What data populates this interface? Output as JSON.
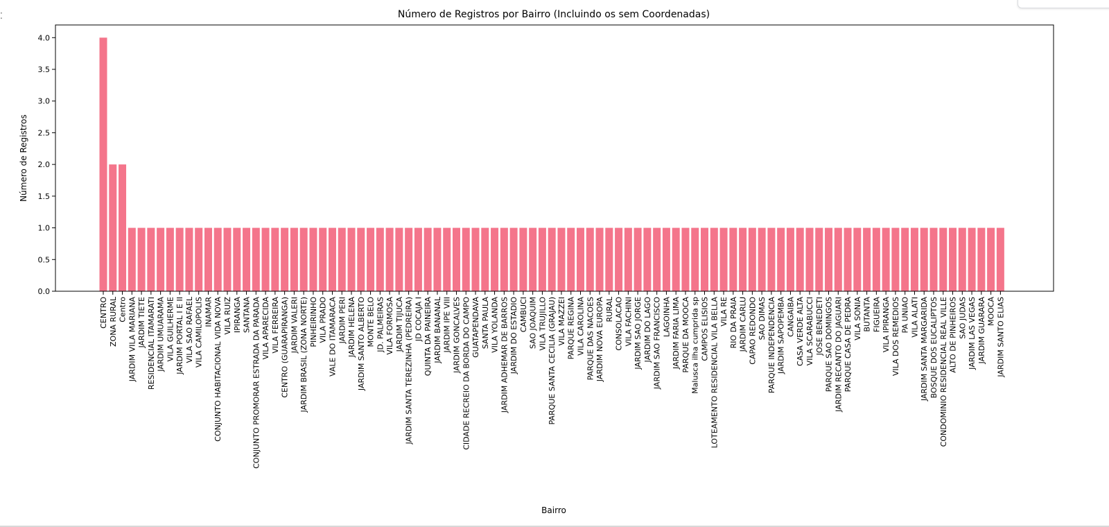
{
  "chart_data": {
    "type": "bar",
    "title": "Número de Registros por Bairro (Incluindo os sem Coordenadas)",
    "xlabel": "Bairro",
    "ylabel": "Número de Registros",
    "ylim": [
      0,
      4.2
    ],
    "yticks": [
      "0.0",
      "0.5",
      "1.0",
      "1.5",
      "2.0",
      "2.5",
      "3.0",
      "3.5",
      "4.0"
    ],
    "grid": false,
    "bar_color": "#f4758b",
    "categories": [
      "CENTRO",
      "ZONA RURAL",
      "Centro",
      "JARDIM VILA MARIANA",
      "JARDIM TIETE",
      "RESIDENCIAL ITAMARATI",
      "JARDIM UMUARAMA",
      "VILA GUILHERME",
      "JARDIM PORTAL I E II",
      "VILA SAO RAFAEL",
      "VILA CAMILOPOLIS",
      "INAMAR",
      "CONJUNTO HABITACIONAL VIDA NOVA",
      "VILA RUIZ",
      "IPIRANGA",
      "SANTANA",
      "CONJUNTO PROMORAR ESTRADA DA PARADA",
      "VILA APARECIDA",
      "VILA FERREIRA",
      "CENTRO (GUARAPIRANGA)",
      "JARDIM VALERI",
      "JARDIM BRASIL (ZONA NORTE)",
      "PINHEIRINHO",
      "VILA PRADO",
      "VALE DO ITAMARACA",
      "JARDIM PERI",
      "JARDIM HELENA",
      "JARDIM SANTO ALBERTO",
      "MONTE BELO",
      "JD. PALMEIRAS",
      "VILA FORMOSA",
      "JARDIM TIJUCA",
      "JARDIM SANTA TEREZINHA (PEDREIRA)",
      "JD COCAJA I",
      "QUINTA DA PAINEIRA",
      "JARDIM BANANAL",
      "JARDIM IPE VIII",
      "JARDIM GONCALVES",
      "CIDADE RECREIO DA BORDA DO CAMPO",
      "GUATAPENDAVA",
      "SANTA PAULA",
      "VILA YOLANDA",
      "JARDIM ADHEMAR DE BARROS",
      "JARDIM DO ESTADIO",
      "CAMBUCI",
      "SAO JOAQUIM",
      "VILA TRUJILLO",
      "PARQUE SANTA CECILIA (GRAJAU)",
      "VILA MAZZEI",
      "PARQUE REGINA",
      "VILA CAROLINA",
      "PARQUE DAS NACOES",
      "JARDIM NOVA EUROPA",
      "RURAL",
      "CONSOLACAO",
      "VILA FACHINI",
      "JARDIM SAO JORGE",
      "JARDIM DO LAGO",
      "JARDIM SAO FRANCISCO",
      "LAGOINHA",
      "JARDIM FARIA LIMA",
      "PARQUE DA MOOCA",
      "Malusca ilha cumprida sp",
      "CAMPOS ELISIOS",
      "LOTEAMENTO RESIDENCIAL VILA BELLA",
      "VILA RE",
      "RIO DA PRAIA",
      "JARDIM CARLU",
      "CAPAO REDONDO",
      "SAO DIMAS",
      "PARQUE INDEPENDENCIA",
      "JARDIM SAPOPEMBA",
      "CANGAIBA",
      "CASA VERDE ALTA",
      "VILA SCARABUCCI",
      "JOSE BENEDETI",
      "PARQUE SAO DOMINGOS",
      "JARDIM RECANTO DO JAGUARI",
      "PARQUE CASA DE PEDRA",
      "VILA SONIA",
      "BUTANTA",
      "FIGUEIRA",
      "VILA IPIRANGA",
      "VILA DOS REMEDIOS",
      "PA UNIAO",
      "VILA ALATI",
      "JARDIM SANTA MARGARIDA",
      "BOSQUE DOS EUCALIPTOS",
      "CONDOMINIO RESIDENCIAL REAL VILLE",
      "ALTO DE PINHEIROS",
      "SAO JUDAS",
      "JARDIM LAS VEGAS",
      "JARDIM GUARARA",
      "MOOCA",
      "JARDIM SANTO ELIAS"
    ],
    "values": [
      4,
      2,
      2,
      1,
      1,
      1,
      1,
      1,
      1,
      1,
      1,
      1,
      1,
      1,
      1,
      1,
      1,
      1,
      1,
      1,
      1,
      1,
      1,
      1,
      1,
      1,
      1,
      1,
      1,
      1,
      1,
      1,
      1,
      1,
      1,
      1,
      1,
      1,
      1,
      1,
      1,
      1,
      1,
      1,
      1,
      1,
      1,
      1,
      1,
      1,
      1,
      1,
      1,
      1,
      1,
      1,
      1,
      1,
      1,
      1,
      1,
      1,
      1,
      1,
      1,
      1,
      1,
      1,
      1,
      1,
      1,
      1,
      1,
      1,
      1,
      1,
      1,
      1,
      1,
      1,
      1,
      1,
      1,
      1,
      1,
      1,
      1,
      1,
      1,
      1,
      1,
      1,
      1,
      1,
      1
    ]
  }
}
